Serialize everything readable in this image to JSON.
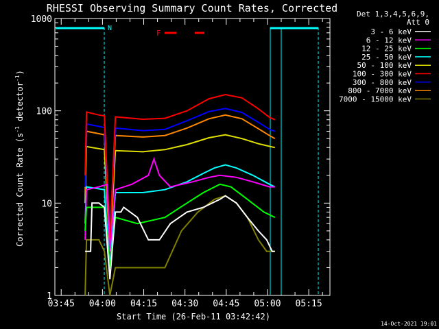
{
  "chart_data": {
    "type": "line",
    "title": "RHESSI Observing Summary Count Rates, Corrected",
    "xlabel": "Start Time (26-Feb-11 03:42:42)",
    "ylabel_main": "Corrected Count Rate (s",
    "ylabel_sup1": "-1",
    "ylabel_mid": " detector",
    "ylabel_sup2": "-1",
    "ylabel_end": ")",
    "yscale": "log",
    "ylim": [
      1,
      1000
    ],
    "x_tick_labels": [
      "03:45",
      "04:00",
      "04:15",
      "04:30",
      "04:45",
      "05:00",
      "05:15"
    ],
    "x_tick_minutes": [
      2.3,
      17.3,
      32.3,
      47.3,
      62.3,
      77.3,
      92.3
    ],
    "xlim_minutes": [
      0,
      100
    ],
    "y_tick_labels": [
      "1",
      "10",
      "100",
      "1000"
    ],
    "y_tick_values": [
      1,
      10,
      100,
      1000
    ],
    "legend_header": [
      "Det 1,3,4,5,6,9,",
      "Att 0"
    ],
    "flare_marker": "F",
    "night_marker": "N",
    "footer_date": "14-Oct-2021 19:01",
    "series": [
      {
        "name": "3 - 6 keV",
        "color": "#ffffff",
        "points": [
          [
            11,
            3
          ],
          [
            13,
            3
          ],
          [
            13.5,
            10
          ],
          [
            16,
            10
          ],
          [
            18,
            9
          ],
          [
            20,
            1.5
          ],
          [
            22,
            8
          ],
          [
            24,
            8
          ],
          [
            25,
            9
          ],
          [
            30,
            7
          ],
          [
            34,
            4
          ],
          [
            38,
            4
          ],
          [
            42,
            6
          ],
          [
            48,
            8
          ],
          [
            54,
            9
          ],
          [
            60,
            11
          ],
          [
            62,
            12
          ],
          [
            66,
            10
          ],
          [
            70,
            7
          ],
          [
            74,
            5
          ],
          [
            77,
            4
          ],
          [
            79,
            3
          ],
          [
            80,
            3
          ]
        ]
      },
      {
        "name": "6 - 12 keV",
        "color": "#ff00ff",
        "points": [
          [
            11,
            4
          ],
          [
            11.5,
            14
          ],
          [
            16,
            15
          ],
          [
            19,
            16
          ],
          [
            20,
            3
          ],
          [
            22,
            14
          ],
          [
            28,
            16
          ],
          [
            34,
            20
          ],
          [
            36,
            30
          ],
          [
            38,
            20
          ],
          [
            42,
            15
          ],
          [
            50,
            17
          ],
          [
            56,
            19
          ],
          [
            60,
            20
          ],
          [
            66,
            19
          ],
          [
            72,
            17
          ],
          [
            78,
            15
          ],
          [
            80,
            15
          ]
        ]
      },
      {
        "name": "12 - 25 keV",
        "color": "#00ff00",
        "points": [
          [
            11,
            5
          ],
          [
            11.5,
            9
          ],
          [
            18,
            9
          ],
          [
            20,
            2
          ],
          [
            22,
            7
          ],
          [
            30,
            6
          ],
          [
            40,
            7
          ],
          [
            48,
            10
          ],
          [
            54,
            13
          ],
          [
            60,
            16
          ],
          [
            64,
            15
          ],
          [
            70,
            11
          ],
          [
            76,
            8
          ],
          [
            80,
            7
          ]
        ]
      },
      {
        "name": "25 - 50 keV",
        "color": "#00ffff",
        "points": [
          [
            11,
            6
          ],
          [
            11.5,
            15
          ],
          [
            18,
            14
          ],
          [
            20,
            2
          ],
          [
            22,
            13
          ],
          [
            32,
            13
          ],
          [
            40,
            14
          ],
          [
            48,
            17
          ],
          [
            54,
            21
          ],
          [
            58,
            24
          ],
          [
            62,
            26
          ],
          [
            66,
            24
          ],
          [
            72,
            20
          ],
          [
            78,
            16
          ],
          [
            80,
            15
          ]
        ]
      },
      {
        "name": "50 - 100 keV",
        "color": "#e0e000",
        "points": [
          [
            11,
            10
          ],
          [
            11.5,
            41
          ],
          [
            18,
            38
          ],
          [
            20,
            3
          ],
          [
            22,
            37
          ],
          [
            32,
            36
          ],
          [
            40,
            38
          ],
          [
            48,
            43
          ],
          [
            56,
            51
          ],
          [
            62,
            55
          ],
          [
            68,
            50
          ],
          [
            74,
            44
          ],
          [
            80,
            40
          ]
        ]
      },
      {
        "name": "100 - 300 keV",
        "color": "#ff0000",
        "points": [
          [
            11,
            20
          ],
          [
            11.5,
            97
          ],
          [
            16,
            90
          ],
          [
            18,
            88
          ],
          [
            20,
            4
          ],
          [
            22,
            86
          ],
          [
            32,
            81
          ],
          [
            40,
            83
          ],
          [
            48,
            100
          ],
          [
            56,
            135
          ],
          [
            62,
            150
          ],
          [
            68,
            138
          ],
          [
            74,
            105
          ],
          [
            78,
            85
          ],
          [
            80,
            80
          ]
        ]
      },
      {
        "name": "300 - 800 keV",
        "color": "#0000ff",
        "points": [
          [
            11,
            15
          ],
          [
            11.5,
            72
          ],
          [
            18,
            66
          ],
          [
            20,
            4
          ],
          [
            22,
            65
          ],
          [
            32,
            61
          ],
          [
            40,
            63
          ],
          [
            48,
            78
          ],
          [
            56,
            98
          ],
          [
            62,
            106
          ],
          [
            68,
            96
          ],
          [
            74,
            75
          ],
          [
            78,
            63
          ],
          [
            80,
            60
          ]
        ]
      },
      {
        "name": "800 - 7000 keV",
        "color": "#ff8800",
        "points": [
          [
            11,
            12
          ],
          [
            11.5,
            60
          ],
          [
            18,
            55
          ],
          [
            20,
            3
          ],
          [
            22,
            54
          ],
          [
            32,
            52
          ],
          [
            40,
            54
          ],
          [
            48,
            65
          ],
          [
            56,
            82
          ],
          [
            62,
            90
          ],
          [
            68,
            82
          ],
          [
            74,
            64
          ],
          [
            78,
            54
          ],
          [
            80,
            50
          ]
        ]
      },
      {
        "name": "7000 - 15000 keV",
        "color": "#808000",
        "points": [
          [
            11,
            1
          ],
          [
            11.5,
            4
          ],
          [
            16,
            4
          ],
          [
            18,
            3
          ],
          [
            20,
            1
          ],
          [
            22,
            2
          ],
          [
            30,
            2
          ],
          [
            40,
            2
          ],
          [
            46,
            5
          ],
          [
            52,
            8
          ],
          [
            58,
            11
          ],
          [
            62,
            12
          ],
          [
            66,
            10
          ],
          [
            70,
            7
          ],
          [
            74,
            4
          ],
          [
            77,
            3
          ],
          [
            80,
            3
          ]
        ]
      }
    ]
  }
}
